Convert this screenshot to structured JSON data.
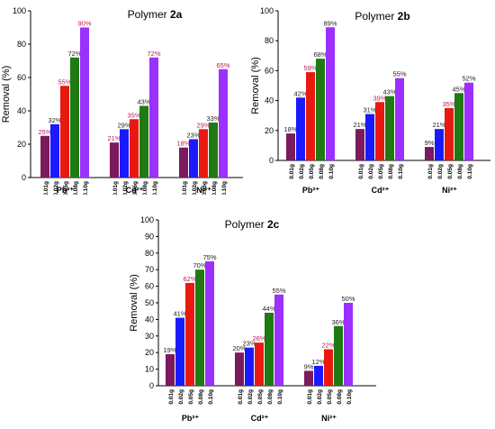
{
  "chart_data": [
    {
      "type": "bar",
      "title_prefix": "Polymer",
      "title_label": "2a",
      "ylabel": "Removal (%)",
      "ylim": [
        0,
        100
      ],
      "yticks": [
        0,
        20,
        40,
        60,
        80,
        100
      ],
      "groups": [
        "Pb²⁺",
        "Cd²⁺",
        "Ni²⁺"
      ],
      "doses": [
        "0.01g",
        "0.02g",
        "0.05g",
        "0.08g",
        "0.10g"
      ],
      "colors": [
        "#7b1a5c",
        "#1a1aff",
        "#e8190f",
        "#1f7a12",
        "#9b30ff"
      ],
      "label_colors": [
        "#c0185a",
        "#222222",
        "#c0185a",
        "#222222",
        "#c0185a"
      ],
      "values": [
        [
          25,
          32,
          55,
          72,
          90
        ],
        [
          21,
          29,
          35,
          43,
          72
        ],
        [
          18,
          23,
          29,
          33,
          65
        ]
      ],
      "labels": [
        [
          "25%",
          "32%",
          "55%",
          "72%",
          "90%"
        ],
        [
          "21%",
          "29%",
          "35%",
          "43%",
          "72%"
        ],
        [
          "18%",
          "23%",
          "29%",
          "33%",
          "65%"
        ]
      ]
    },
    {
      "type": "bar",
      "title_prefix": "Polymer",
      "title_label": "2b",
      "ylabel": "Removal (%)",
      "ylim": [
        0,
        100
      ],
      "yticks": [
        0,
        20,
        40,
        60,
        80,
        100
      ],
      "groups": [
        "Pb²⁺",
        "Cd²⁺",
        "Ni²⁺"
      ],
      "doses": [
        "0.01g",
        "0.02g",
        "0.05g",
        "0.08g",
        "0.10g"
      ],
      "colors": [
        "#7b1a5c",
        "#1a1aff",
        "#e8190f",
        "#1f7a12",
        "#9b30ff"
      ],
      "label_colors": [
        "#222222",
        "#222222",
        "#c0185a",
        "#222222",
        "#222222"
      ],
      "values": [
        [
          18,
          42,
          59,
          68,
          89
        ],
        [
          21,
          31,
          39,
          43,
          55
        ],
        [
          9,
          21,
          35,
          45,
          52
        ]
      ],
      "labels": [
        [
          "18%",
          "42%",
          "59%",
          "68%",
          "89%"
        ],
        [
          "21%",
          "31%",
          "39%",
          "43%",
          "55%"
        ],
        [
          "9%",
          "21%",
          "35%",
          "45%",
          "52%"
        ]
      ]
    },
    {
      "type": "bar",
      "title_prefix": "Polymer",
      "title_label": "2c",
      "ylabel": "Removal (%)",
      "ylim": [
        0,
        100
      ],
      "yticks": [
        0,
        10,
        20,
        30,
        40,
        50,
        60,
        70,
        80,
        90,
        100
      ],
      "groups": [
        "Pb²⁺",
        "Cd²⁺",
        "Ni²⁺"
      ],
      "doses": [
        "0.01g",
        "0.02g",
        "0.05g",
        "0.08g",
        "0.10g"
      ],
      "colors": [
        "#7b1a5c",
        "#1a1aff",
        "#e8190f",
        "#1f7a12",
        "#9b30ff"
      ],
      "label_colors": [
        "#222222",
        "#222222",
        "#c0185a",
        "#222222",
        "#222222"
      ],
      "values": [
        [
          19,
          41,
          62,
          70,
          75
        ],
        [
          20,
          23,
          26,
          44,
          55
        ],
        [
          9,
          12,
          22,
          36,
          50
        ]
      ],
      "labels": [
        [
          "19%",
          "41%",
          "62%",
          "70%",
          "75%"
        ],
        [
          "20%",
          "23%",
          "26%",
          "44%",
          "55%"
        ],
        [
          "9%",
          "12%",
          "22%",
          "36%",
          "50%"
        ]
      ]
    }
  ]
}
